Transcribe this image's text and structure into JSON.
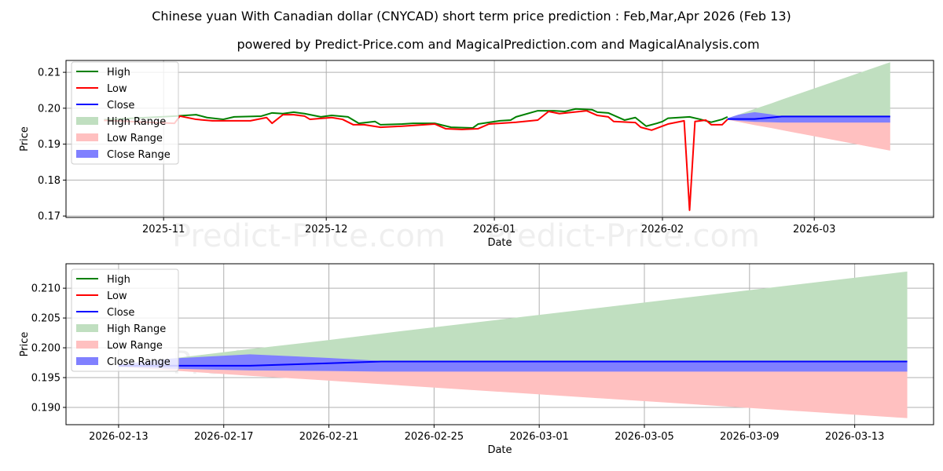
{
  "title": "Chinese yuan With Canadian dollar (CNYCAD) short term price prediction : Feb,Mar,Apr 2026 (Feb 13)",
  "subtitle": "powered by Predict-Price.com and MagicalPrediction.com and MagicalAnalysis.com",
  "watermark": "Predict-Price.com",
  "colors": {
    "high": "#008000",
    "low": "#ff0000",
    "close": "#0000ff",
    "high_range": "#c0dfc0",
    "low_range": "#ffc0c0",
    "close_range": "#8080ff"
  },
  "chart_data": [
    {
      "type": "line",
      "xlabel": "Date",
      "ylabel": "Price",
      "ylim": [
        0.1696,
        0.2133
      ],
      "xlim": [
        "2025-10-14",
        "2026-03-23"
      ],
      "yticks": [
        "0.17",
        "0.18",
        "0.19",
        "0.20",
        "0.21"
      ],
      "ytick_values": [
        0.17,
        0.18,
        0.19,
        0.2,
        0.21
      ],
      "xticks": [
        "2025-11",
        "2025-12",
        "2026-01",
        "2026-02",
        "2026-03"
      ],
      "xtick_dates": [
        "2025-11-01",
        "2025-12-01",
        "2026-01-01",
        "2026-02-01",
        "2026-03-01"
      ],
      "grid": true,
      "legend": {
        "placement": "top-left",
        "entries": [
          "High",
          "Low",
          "Close",
          "High Range",
          "Low Range",
          "Close Range"
        ]
      },
      "series": [
        {
          "name": "High",
          "x": [
            "2025-10-21",
            "2025-11-03",
            "2025-11-07",
            "2025-11-09",
            "2025-11-12",
            "2025-11-14",
            "2025-11-19",
            "2025-11-21",
            "2025-11-23",
            "2025-11-25",
            "2025-11-27",
            "2025-11-30",
            "2025-12-02",
            "2025-12-05",
            "2025-12-07",
            "2025-12-10",
            "2025-12-11",
            "2025-12-15",
            "2025-12-17",
            "2025-12-21",
            "2025-12-24",
            "2025-12-28",
            "2025-12-29",
            "2026-01-02",
            "2026-01-04",
            "2026-01-05",
            "2026-01-09",
            "2026-01-12",
            "2026-01-14",
            "2026-01-16",
            "2026-01-19",
            "2026-01-20",
            "2026-01-22",
            "2026-01-25",
            "2026-01-27",
            "2026-01-29",
            "2026-01-31",
            "2026-02-01",
            "2026-02-02",
            "2026-02-06",
            "2026-02-08",
            "2026-02-10",
            "2026-02-12",
            "2026-02-13"
          ],
          "values": [
            0.1968,
            0.1978,
            0.1982,
            0.1974,
            0.1969,
            0.1976,
            0.1978,
            0.1987,
            0.1985,
            0.1989,
            0.1985,
            0.1976,
            0.198,
            0.1976,
            0.1958,
            0.1963,
            0.1954,
            0.1956,
            0.1958,
            0.1958,
            0.1947,
            0.1945,
            0.1956,
            0.1965,
            0.1967,
            0.1976,
            0.1993,
            0.1993,
            0.1991,
            0.1998,
            0.1996,
            0.1989,
            0.1987,
            0.1967,
            0.1974,
            0.195,
            0.1958,
            0.1963,
            0.1972,
            0.1976,
            0.1969,
            0.1961,
            0.1969,
            0.1976
          ]
        },
        {
          "name": "Low",
          "x": [
            "2025-10-21",
            "2025-11-03",
            "2025-11-04",
            "2025-11-07",
            "2025-11-10",
            "2025-11-17",
            "2025-11-20",
            "2025-11-21",
            "2025-11-23",
            "2025-11-25",
            "2025-11-27",
            "2025-11-28",
            "2025-12-02",
            "2025-12-04",
            "2025-12-06",
            "2025-12-08",
            "2025-12-11",
            "2025-12-15",
            "2025-12-21",
            "2025-12-23",
            "2025-12-26",
            "2025-12-29",
            "2025-12-31",
            "2026-01-02",
            "2026-01-05",
            "2026-01-09",
            "2026-01-11",
            "2026-01-13",
            "2026-01-18",
            "2026-01-20",
            "2026-01-22",
            "2026-01-23",
            "2026-01-27",
            "2026-01-28",
            "2026-01-30",
            "2026-02-02",
            "2026-02-05",
            "2026-02-06",
            "2026-02-07",
            "2026-02-09",
            "2026-02-10",
            "2026-02-12",
            "2026-02-13"
          ],
          "values": [
            0.1966,
            0.1958,
            0.1978,
            0.1969,
            0.1965,
            0.1965,
            0.1974,
            0.1958,
            0.1982,
            0.1982,
            0.1978,
            0.1969,
            0.1974,
            0.1969,
            0.1954,
            0.1954,
            0.1947,
            0.195,
            0.1956,
            0.1943,
            0.1941,
            0.1943,
            0.1956,
            0.1958,
            0.1961,
            0.1967,
            0.1991,
            0.1985,
            0.1993,
            0.198,
            0.1976,
            0.1963,
            0.196,
            0.1947,
            0.1939,
            0.1956,
            0.1965,
            0.1716,
            0.1963,
            0.1967,
            0.1954,
            0.1954,
            0.1969
          ]
        }
      ]
    },
    {
      "type": "line",
      "xlabel": "Date",
      "ylabel": "Price",
      "ylim": [
        0.1871,
        0.2141
      ],
      "xlim": [
        "2026-02-11",
        "2026-03-16"
      ],
      "yticks": [
        "0.190",
        "0.195",
        "0.200",
        "0.205",
        "0.210"
      ],
      "ytick_values": [
        0.19,
        0.195,
        0.2,
        0.205,
        0.21
      ],
      "xticks": [
        "2026-02-13",
        "2026-02-17",
        "2026-02-21",
        "2026-02-25",
        "2026-03-01",
        "2026-03-05",
        "2026-03-09",
        "2026-03-13"
      ],
      "grid": true,
      "legend": {
        "placement": "top-left",
        "entries": [
          "High",
          "Low",
          "Close",
          "High Range",
          "Low Range",
          "Close Range"
        ]
      }
    }
  ],
  "prediction": {
    "x": [
      "2026-02-13",
      "2026-02-15",
      "2026-02-18",
      "2026-02-21",
      "2026-02-23",
      "2026-03-15"
    ],
    "close": [
      0.197,
      0.197,
      0.197,
      0.1974,
      0.1977,
      0.1977
    ],
    "close_upper": [
      0.1972,
      0.1982,
      0.1989,
      0.1983,
      0.1978,
      0.1978
    ],
    "close_lower": [
      0.1968,
      0.1965,
      0.1962,
      0.1961,
      0.196,
      0.196
    ],
    "high_upper": [
      0.1972,
      0.1982,
      0.1998,
      0.2013,
      0.2024,
      0.2128
    ],
    "low_lower": [
      0.1968,
      0.1962,
      0.1953,
      0.1945,
      0.1939,
      0.1882
    ]
  }
}
